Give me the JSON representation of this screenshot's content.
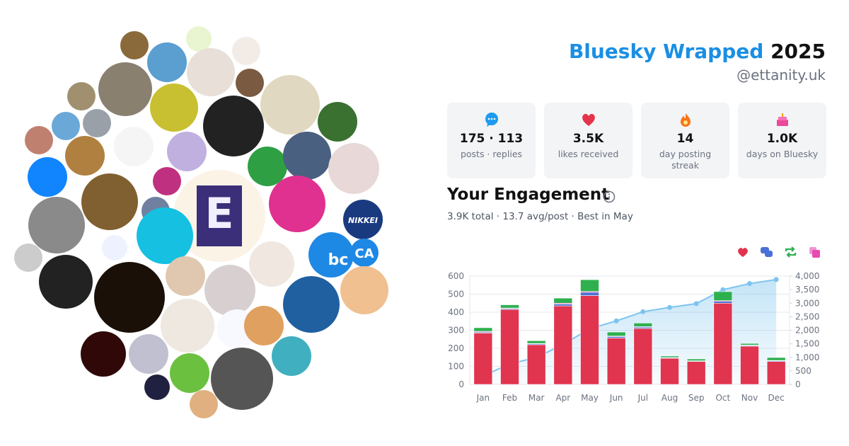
{
  "header": {
    "brand": "Bluesky Wrapped",
    "year": "2025",
    "handle": "@ettanity.uk"
  },
  "stats": [
    {
      "value": "175 · 113",
      "label": "posts · replies"
    },
    {
      "value": "3.5K",
      "label": "likes received"
    },
    {
      "value": "14",
      "label": "day posting streak"
    },
    {
      "value": "1.0K",
      "label": "days on Bluesky"
    }
  ],
  "avatars": {
    "big": "E",
    "nikkei": "NIKKEI",
    "bc": "bc",
    "ca": "CA"
  },
  "engagement": {
    "title": "Your Engagement",
    "summary": "3.9K total · 13.7 avg/post · Best in May"
  },
  "chart_data": {
    "type": "bar",
    "stacked": true,
    "categories": [
      "Jan",
      "Feb",
      "Mar",
      "Apr",
      "May",
      "Jun",
      "Jul",
      "Aug",
      "Sep",
      "Oct",
      "Nov",
      "Dec"
    ],
    "series": [
      {
        "color": "#e0344f",
        "values": [
          285,
          415,
          220,
          435,
          492,
          257,
          310,
          145,
          127,
          450,
          212,
          127
        ]
      },
      {
        "color": "#4a6fd8",
        "values": [
          5,
          5,
          5,
          10,
          18,
          8,
          7,
          3,
          3,
          10,
          4,
          4
        ]
      },
      {
        "color": "#e84bb0",
        "values": [
          4,
          3,
          2,
          5,
          5,
          3,
          3,
          1,
          1,
          4,
          2,
          2
        ]
      },
      {
        "color": "#2eb04f",
        "values": [
          20,
          18,
          15,
          28,
          65,
          22,
          20,
          8,
          10,
          50,
          9,
          16
        ]
      },
      {
        "type": "line",
        "axis": "y2",
        "color": "#7cc4ee",
        "values": [
          314,
          755,
          997,
          1475,
          2055,
          2345,
          2685,
          2842,
          2983,
          3497,
          3724,
          3873
        ]
      }
    ],
    "ylim": [
      0,
      600
    ],
    "yticks": [
      0,
      100,
      200,
      300,
      400,
      500,
      600
    ],
    "y2lim": [
      0,
      4000
    ],
    "y2ticks": [
      0,
      500,
      {
        "value": 1000,
        "label": "1,000"
      },
      {
        "value": 1500,
        "label": "1,500"
      },
      {
        "value": 2000,
        "label": "2,000"
      },
      {
        "value": 2500,
        "label": "2,500"
      },
      {
        "value": 3000,
        "label": "3,000"
      },
      {
        "value": 3500,
        "label": "3,500"
      },
      {
        "value": 4000,
        "label": "4,000"
      }
    ],
    "grid": true
  }
}
